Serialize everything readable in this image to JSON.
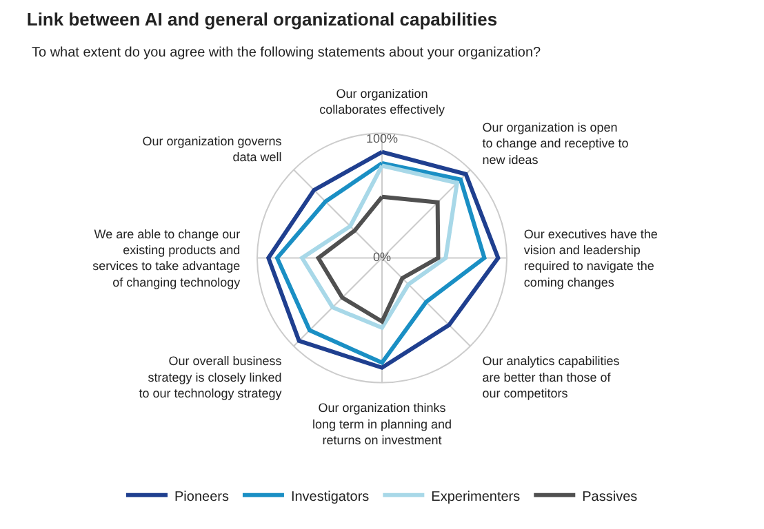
{
  "chart_data": {
    "type": "radar",
    "title": "Link between AI and general organizational capabilities",
    "subtitle": "To what extent do you agree with the following statements about your organization?",
    "categories": [
      "Our organization collaborates effectively",
      "Our organization is open to change and receptive to new ideas",
      "Our executives have the vision and leadership required to navigate the coming changes",
      "Our analytics capabilities are better than those of our competitors",
      "Our organization thinks long term in planning and returns on investment",
      "Our overall business strategy is closely linked to our technology strategy",
      "We are able to change our existing products and services to take advantage of changing technology",
      "Our organization governs data well"
    ],
    "series": [
      {
        "name": "Pioneers",
        "color": "#1f3f8f",
        "values": [
          85,
          95,
          93,
          76,
          88,
          94,
          91,
          77
        ]
      },
      {
        "name": "Investigators",
        "color": "#1a8fc4",
        "values": [
          76,
          89,
          82,
          50,
          84,
          82,
          84,
          64
        ]
      },
      {
        "name": "Experimenters",
        "color": "#a8d8e8",
        "values": [
          74,
          85,
          51,
          30,
          56,
          56,
          64,
          36
        ]
      },
      {
        "name": "Passives",
        "color": "#505050",
        "values": [
          49,
          63,
          45,
          23,
          51,
          45,
          51,
          31
        ]
      }
    ],
    "ylim": [
      0,
      100
    ],
    "yticks": [
      {
        "value": 0,
        "label": "0%"
      },
      {
        "value": 100,
        "label": "100%"
      }
    ],
    "grid": true,
    "legend": "bottom",
    "marker": "none",
    "line_style": "solid"
  }
}
